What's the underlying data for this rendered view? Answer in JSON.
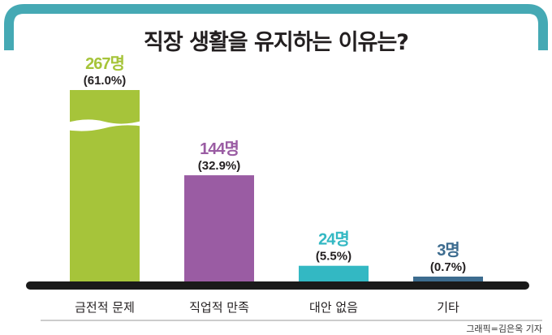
{
  "chart_data": {
    "type": "bar",
    "title": "직장 생활을 유지하는 이유는?",
    "categories": [
      "금전적 문제",
      "직업적 만족",
      "대안 없음",
      "기타"
    ],
    "values": [
      267,
      144,
      24,
      3
    ],
    "percent_labels": [
      "(61.0%)",
      "(32.9%)",
      "(5.5%)",
      "(0.7%)"
    ],
    "count_labels": [
      "267명",
      "144명",
      "24명",
      "3명"
    ],
    "colors": [
      "#a6c43a",
      "#9a5ca3",
      "#33b8c3",
      "#3d6c8f"
    ],
    "broken_axis_bar": "금전적 문제",
    "grid": false,
    "legend": "none"
  },
  "frame_color": "#45a9b4",
  "credit": "그래픽=김은옥 기자"
}
